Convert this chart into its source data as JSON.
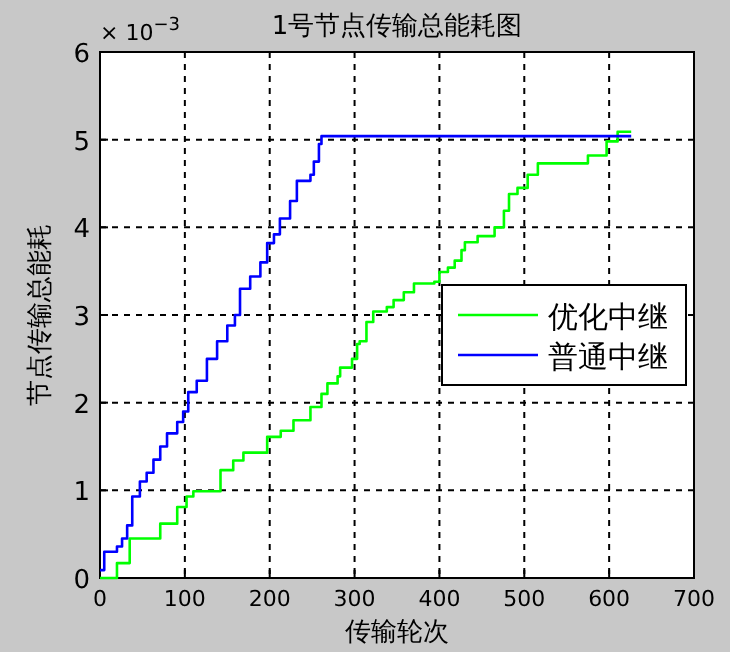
{
  "chart_data": {
    "type": "step",
    "title": "1号节点传输总能耗图",
    "xlabel": "传输轮次",
    "ylabel": "节点传输总能耗",
    "annotations": [
      "× 10$^{−3}$"
    ],
    "xlim": [
      0,
      700
    ],
    "xticks": [
      0,
      100,
      200,
      300,
      400,
      500,
      600,
      700
    ],
    "ylim": [
      0,
      6
    ],
    "yticks": [
      0,
      1,
      2,
      3,
      4,
      5,
      6
    ],
    "grid": true,
    "legend": "right",
    "series": [
      {
        "name": "优化中继",
        "color": "#00ff00",
        "x": [
          0,
          20,
          35,
          59,
          71,
          87,
          91,
          102,
          110,
          135,
          142,
          157,
          169,
          193,
          197,
          213,
          228,
          248,
          261,
          268,
          280,
          283,
          297,
          303,
          306,
          314,
          322,
          338,
          346,
          358,
          370,
          394,
          400,
          410,
          418,
          426,
          430,
          445,
          465,
          476,
          482,
          492,
          504,
          516,
          575,
          597,
          610,
          626
        ],
        "values": [
          0,
          0.17,
          0.45,
          0.45,
          0.62,
          0.62,
          0.81,
          0.93,
          0.99,
          0.99,
          1.23,
          1.34,
          1.43,
          1.43,
          1.61,
          1.68,
          1.8,
          1.95,
          2.1,
          2.22,
          2.3,
          2.4,
          2.5,
          2.67,
          2.7,
          2.92,
          3.04,
          3.09,
          3.17,
          3.26,
          3.36,
          3.38,
          3.49,
          3.54,
          3.62,
          3.74,
          3.83,
          3.9,
          4.0,
          4.19,
          4.38,
          4.45,
          4.6,
          4.73,
          4.82,
          4.98,
          5.09,
          5.09
        ]
      },
      {
        "name": "普通中继",
        "color": "#0000ff",
        "x": [
          0,
          5,
          20,
          26,
          32,
          38,
          47,
          55,
          63,
          71,
          79,
          91,
          98,
          104,
          114,
          126,
          138,
          150,
          159,
          165,
          177,
          189,
          197,
          205,
          212,
          224,
          232,
          248,
          252,
          258,
          261,
          626
        ],
        "values": [
          0.09,
          0.3,
          0.36,
          0.45,
          0.6,
          0.93,
          1.1,
          1.2,
          1.35,
          1.5,
          1.65,
          1.78,
          1.9,
          2.12,
          2.25,
          2.5,
          2.7,
          2.88,
          3.0,
          3.3,
          3.44,
          3.6,
          3.82,
          3.92,
          4.1,
          4.3,
          4.53,
          4.6,
          4.75,
          4.95,
          5.04,
          5.04
        ]
      }
    ]
  }
}
